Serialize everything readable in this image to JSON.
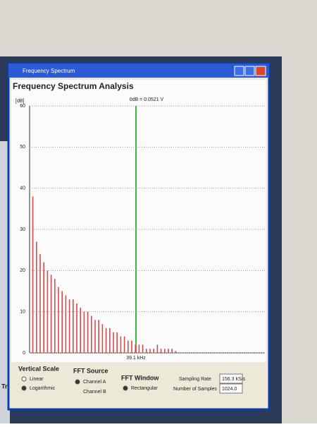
{
  "window": {
    "title": "Frequency Spectrum",
    "background_label": "Trig"
  },
  "chart_data": {
    "type": "bar",
    "title": "Frequency Spectrum Analysis",
    "y_label": "[dB]",
    "reference": "0dB = 0.0521 V",
    "cursor_label": "39.1 kHz",
    "categories": [
      null,
      null,
      null,
      null,
      null,
      null,
      null,
      null,
      null,
      null,
      null,
      null,
      null,
      null,
      null,
      null,
      null,
      null,
      null,
      null,
      null,
      null,
      null,
      null,
      null,
      null,
      null,
      null,
      null,
      null,
      null,
      null,
      null,
      null,
      null,
      null,
      null,
      null,
      null,
      null
    ],
    "values": [
      38,
      27,
      24,
      22,
      20,
      19,
      18,
      16,
      15,
      14,
      13,
      13,
      12,
      11,
      10,
      10,
      9,
      8,
      8,
      7,
      6,
      6,
      5,
      5,
      4,
      4,
      3,
      3,
      2,
      2,
      2,
      1,
      1,
      1,
      2,
      1,
      1,
      1,
      1,
      0.5
    ],
    "color": "#d94a4a",
    "cursor_color": "#3cb83c",
    "ylim": [
      0,
      60
    ],
    "yticks": [
      0,
      10,
      20,
      30,
      40,
      50,
      60
    ],
    "grid": true
  },
  "controls": {
    "vertical_scale": {
      "title": "Vertical Scale",
      "options": [
        "Linear",
        "Logarithmic"
      ]
    },
    "fft_source": {
      "title": "FFT Source",
      "options": [
        "Channel A",
        "Channel B"
      ]
    },
    "fft_window": {
      "title": "FFT Window",
      "options": [
        "Rectangular"
      ]
    },
    "sampling_rate": {
      "label": "Sampling Rate",
      "value": "156.3 kS/s"
    },
    "samples": {
      "label": "Number of Samples",
      "value": "1024.0"
    }
  }
}
